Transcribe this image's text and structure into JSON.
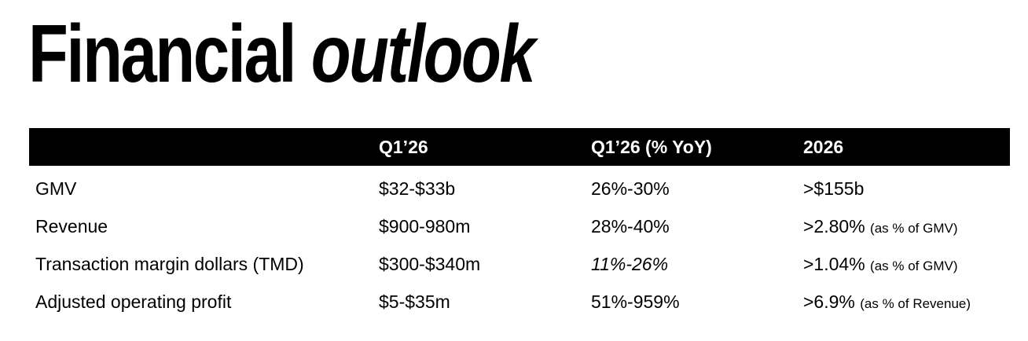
{
  "title": {
    "word1": "Financial",
    "word2": "outlook"
  },
  "headers": [
    "",
    "Q1’26",
    "Q1’26 (% YoY)",
    "2026"
  ],
  "rows": [
    {
      "metric": "GMV",
      "q1": "$32-$33b",
      "yoy": "26%-30%",
      "fy": ">$155b",
      "fy_note": ""
    },
    {
      "metric": "Revenue",
      "q1": "$900-980m",
      "yoy": "28%-40%",
      "fy": ">2.80%",
      "fy_note": "(as % of GMV)"
    },
    {
      "metric": "Transaction margin dollars (TMD)",
      "q1": "$300-$340m",
      "yoy": "11%-26%",
      "fy": ">1.04%",
      "fy_note": "(as % of GMV)"
    },
    {
      "metric": "Adjusted operating profit",
      "q1": "$5-$35m",
      "yoy": "51%-959%",
      "fy": ">6.9%",
      "fy_note": "(as % of Revenue)"
    }
  ],
  "colors": {
    "header_bg": "#000000",
    "header_text": "#ffffff",
    "text": "#000000"
  }
}
